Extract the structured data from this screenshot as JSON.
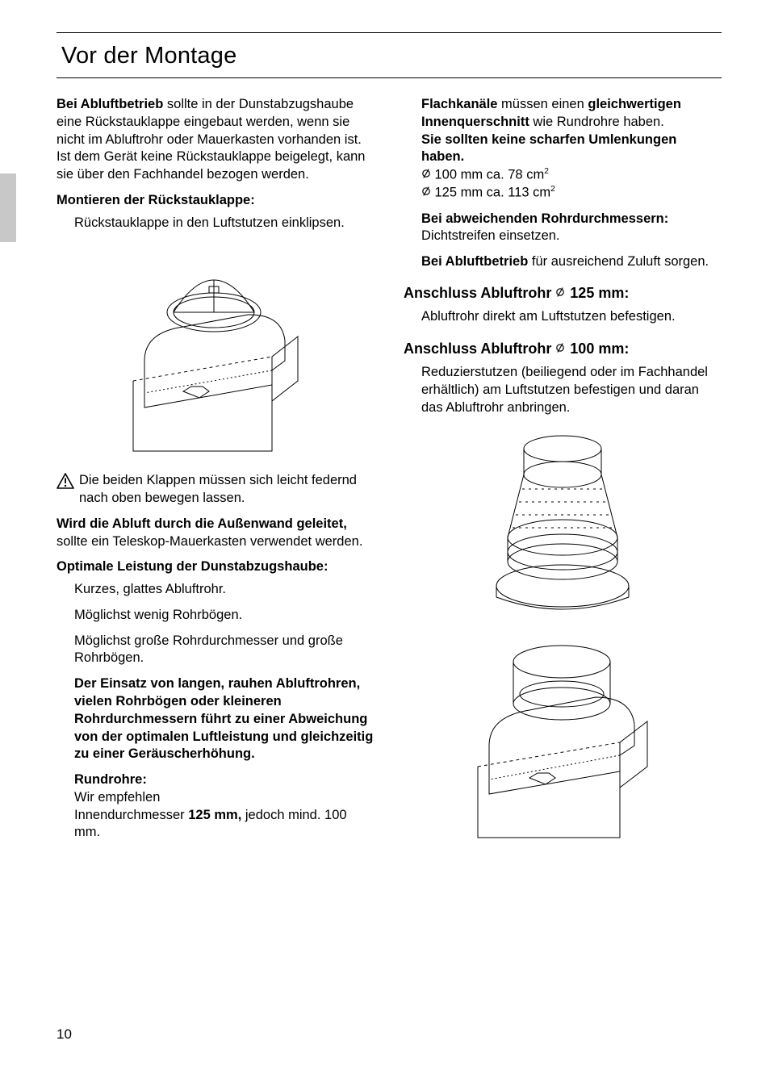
{
  "page": {
    "title": "Vor der Montage",
    "number": "10"
  },
  "left": {
    "p1_bold": "Bei Abluftbetrieb",
    "p1_rest": " sollte in der Dunstab­zugshaube eine Rückstauklappe eingebaut werden, wenn sie nicht im Abluftrohr oder Mauerkasten vorhanden ist.",
    "p1b": "Ist dem Gerät keine Rückstauklappe beigelegt, kann sie über den Fachhandel bezogen werden.",
    "h2": "Montieren der Rückstauklappe:",
    "h2_line": "Rückstauklappe in den Luftstutzen einklipsen.",
    "warn": "Die beiden Klappen müssen sich leicht federnd nach oben bewegen lassen.",
    "p3_bold": "Wird die Abluft durch die Außenwand geleitet,",
    "p3_rest": " sollte ein Teleskop-Mauerkasten verwendet werden.",
    "h3": "Optimale Leistung der Dunstabzugs­haube:",
    "bul1": "Kurzes, glattes Abluftrohr.",
    "bul2": "Möglichst wenig Rohrbögen.",
    "bul3": "Möglichst große Rohrdurchmesser und große Rohrbögen.",
    "bul4_bold": "Der Einsatz von langen, rauhen Abluftrohren, vielen Rohrbögen oder kleineren Rohrdurchmessern führt zu einer Abweichung von der optimalen Luftleistung und gleichzeitig zu einer Geräuscherhöhung.",
    "bul5_head": "Rundrohre:",
    "bul5_a": "Wir empfehlen",
    "bul5_b1": "Innendurchmesser ",
    "bul5_b2": "125 mm,",
    "bul5_b3": " jedoch mind. 100 mm."
  },
  "right": {
    "p1_bold1": "Flachkanäle",
    "p1_mid": " müssen einen ",
    "p1_bold2": "gleichwer­tigen Innenquerschnitt",
    "p1_end": " wie Rundrohre haben.",
    "p1_bold3": "Sie sollten keine scharfen Umlenkun­gen haben.",
    "dim1_a": "100 mm ca.   78 cm",
    "dim2_a": "125 mm ca. 113 cm",
    "sq": "2",
    "p2_bold": "Bei abweichenden Rohrdurch­messern:",
    "p2_rest": " Dichtstreifen einsetzen.",
    "p3_bold": "Bei Abluftbetrieb",
    "p3_rest": " für ausreichend Zuluft sorgen.",
    "h125_a": "Anschluss Abluftrohr ",
    "h125_b": " 125 mm:",
    "h125_line": "Abluftrohr direkt am Luftstutzen befestigen.",
    "h100_a": "Anschluss Abluftrohr ",
    "h100_b": " 100 mm:",
    "h100_line": "Reduzierstutzen (beiliegend oder im Fachhandel erhältlich) am Luftstutzen befestigen und daran das Abluftrohr anbringen."
  },
  "style": {
    "dia_svg": "<svg width='12' height='14' viewBox='0 0 12 14'><circle cx='6' cy='7' r='4.2' fill='none' stroke='#000' stroke-width='1.2'/><line x1='9.2' y1='1.5' x2='2.8' y2='12.5' stroke='#000' stroke-width='1.2'/></svg>"
  }
}
